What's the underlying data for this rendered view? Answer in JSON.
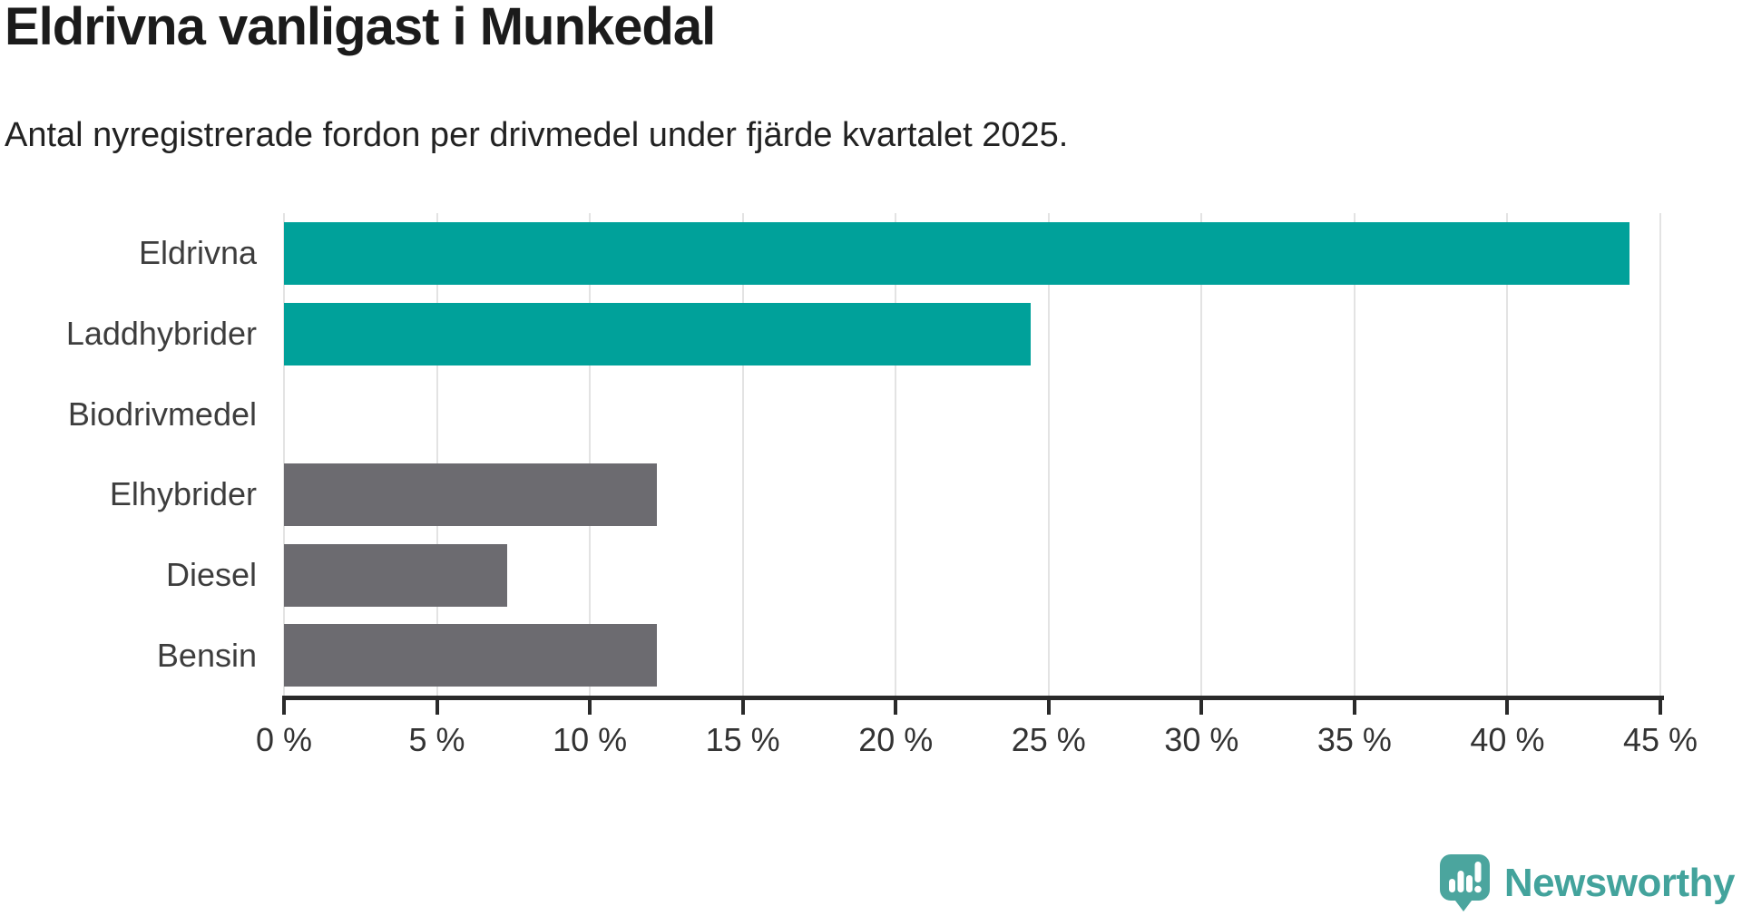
{
  "header": {
    "title": "Eldrivna vanligast i Munkedal",
    "subtitle": "Antal nyregistrerade fordon per drivmedel under fjärde kvartalet 2025."
  },
  "chart_data": {
    "type": "bar",
    "orientation": "horizontal",
    "title": "Eldrivna vanligast i Munkedal",
    "subtitle": "Antal nyregistrerade fordon per drivmedel under fjärde kvartalet 2025.",
    "categories": [
      "Eldrivna",
      "Laddhybrider",
      "Biodrivmedel",
      "Elhybrider",
      "Diesel",
      "Bensin"
    ],
    "values": [
      44.0,
      24.4,
      0,
      12.2,
      7.3,
      12.2
    ],
    "unit": "%",
    "bar_colors": [
      "#00a19a",
      "#00a19a",
      "#00a19a",
      "#6c6b70",
      "#6c6b70",
      "#6c6b70"
    ],
    "xlim": [
      0,
      45
    ],
    "x_ticks": [
      0,
      5,
      10,
      15,
      20,
      25,
      30,
      35,
      40,
      45
    ],
    "x_tick_labels": [
      "0 %",
      "5 %",
      "10 %",
      "15 %",
      "20 %",
      "25 %",
      "30 %",
      "35 %",
      "40 %",
      "45 %"
    ],
    "xlabel": "",
    "ylabel": "",
    "grid": "vertical gridlines only",
    "legend": "none"
  },
  "footer": {
    "brand": "Newsworthy"
  },
  "colors": {
    "accent_teal": "#00a19a",
    "bar_gray": "#6c6b70",
    "brand_teal": "#43a39c",
    "gridline": "#e3e3e3",
    "axis": "#2a2a2a",
    "title_text": "#1b1b1b"
  },
  "icons": {
    "logo_icon": "newsworthy-speech-bubble-bar-chart-icon"
  }
}
